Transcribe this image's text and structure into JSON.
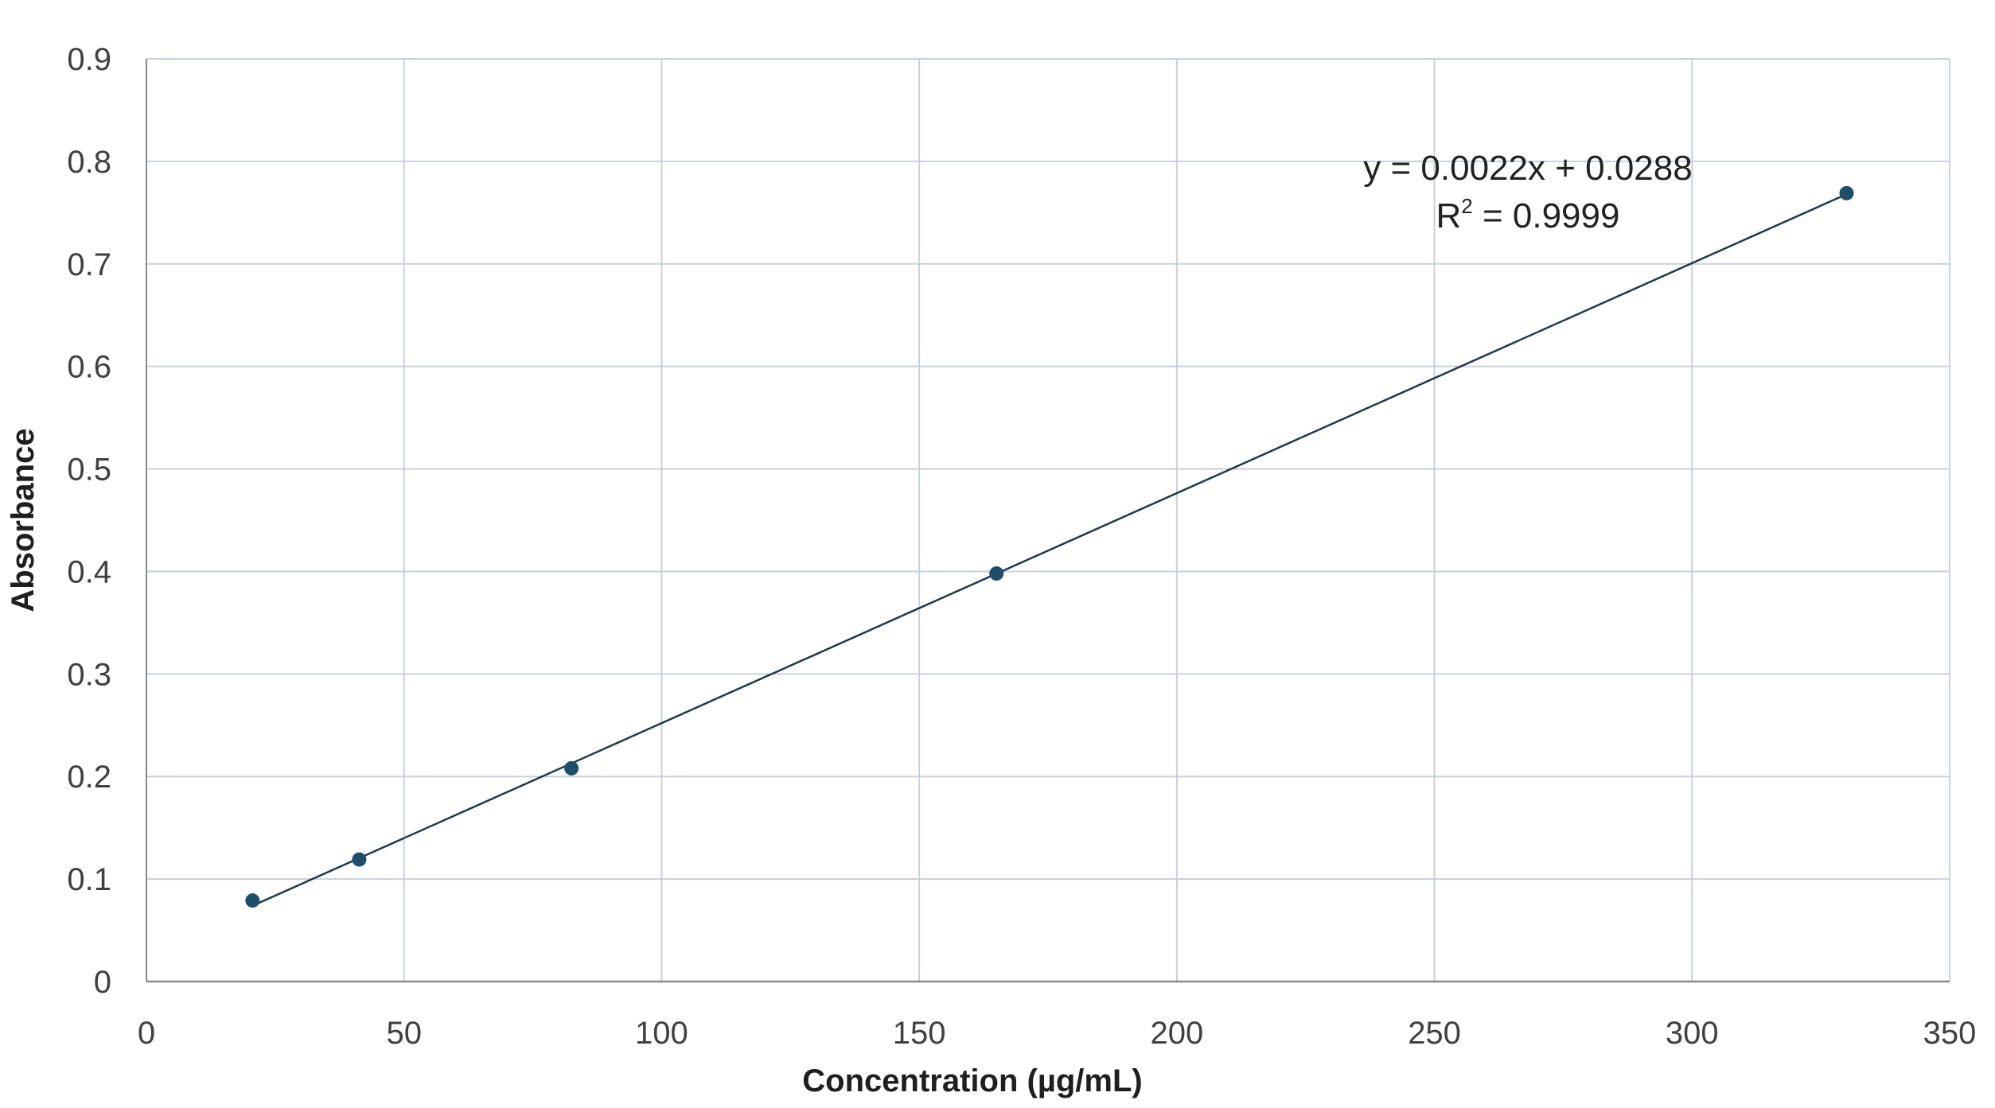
{
  "chart_data": {
    "type": "scatter",
    "title": "",
    "xlabel": "Concentration (µg/mL)",
    "ylabel": "Absorbance",
    "xlim": [
      0,
      350
    ],
    "ylim": [
      0,
      0.9
    ],
    "xticks": [
      "0",
      "50",
      "100",
      "150",
      "200",
      "250",
      "300",
      "350"
    ],
    "yticks": [
      "0",
      "0.1",
      "0.2",
      "0.3",
      "0.4",
      "0.5",
      "0.6",
      "0.7",
      "0.8",
      "0.9"
    ],
    "grid": true,
    "series": [
      {
        "name": "Absorbance",
        "x": [
          20.6,
          41.3,
          82.5,
          165,
          330
        ],
        "y": [
          0.079,
          0.119,
          0.208,
          0.398,
          0.769
        ],
        "color": "#1f4e6b"
      }
    ],
    "trendline": {
      "type": "linear",
      "equation": "y = 0.0022x + 0.0288",
      "r2_label": "R",
      "r2_sup": "2",
      "r2_value": " = 0.9999",
      "color": "#1f3a4a"
    },
    "legend": "none"
  }
}
